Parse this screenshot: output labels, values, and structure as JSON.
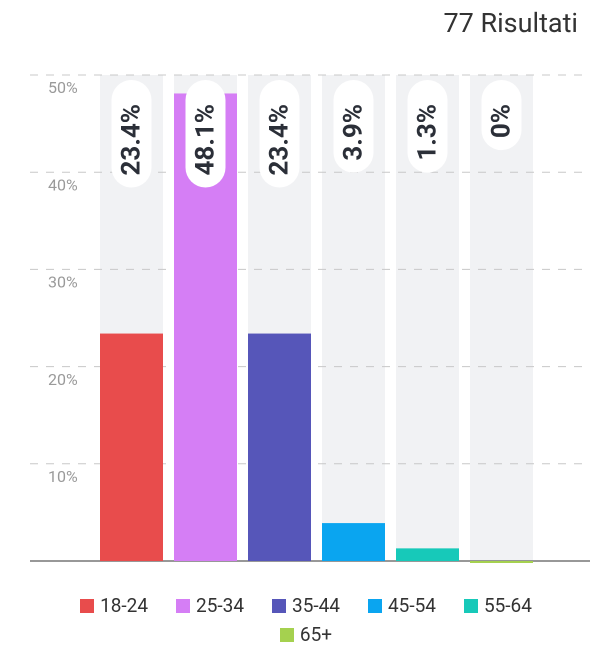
{
  "chart_data": {
    "type": "bar",
    "title": "77 Risultati",
    "categories": [
      "18-24",
      "25-34",
      "35-44",
      "45-54",
      "55-64",
      "65+"
    ],
    "values": [
      23.4,
      48.1,
      23.4,
      3.9,
      1.3,
      0
    ],
    "value_labels": [
      "23.4%",
      "48.1%",
      "23.4%",
      "3.9%",
      "1.3%",
      "0%"
    ],
    "colors": [
      "#e84c4c",
      "#d57ef5",
      "#5656b9",
      "#0aa5f0",
      "#17c9b9",
      "#a5d14f"
    ],
    "ylim": [
      0,
      50
    ],
    "yticks": [
      {
        "value": 10,
        "label": "10%"
      },
      {
        "value": 20,
        "label": "20%"
      },
      {
        "value": 30,
        "label": "30%"
      },
      {
        "value": 40,
        "label": "40%"
      },
      {
        "value": 50,
        "label": "50%"
      }
    ],
    "grid": true
  }
}
